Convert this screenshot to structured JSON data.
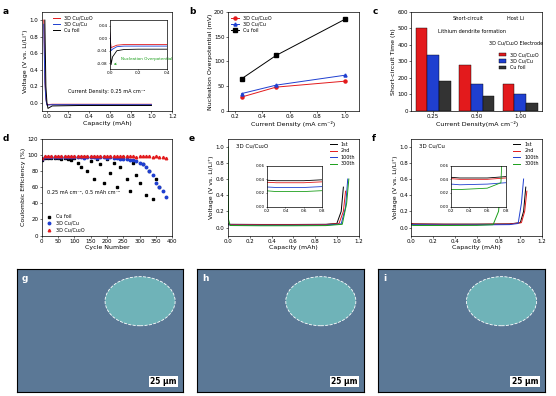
{
  "chart_data": [
    {
      "panel": "a",
      "type": "line",
      "x_label": "Capacity (mAh)",
      "y_label": "Voltage (V vs. Li/Li⁺)",
      "xlim": [
        -0.05,
        1.2
      ],
      "xticks": [
        0.0,
        0.2,
        0.4,
        0.6,
        0.8,
        1.0,
        1.2
      ],
      "ylim": [
        -0.1,
        1.1
      ],
      "yticks": [
        0.0,
        0.2,
        0.4,
        0.6,
        0.8,
        1.0
      ],
      "legend": "upper left",
      "annotations": [
        "Current Density: 0.25 mA cm⁻²"
      ],
      "series": [
        {
          "name": "3D Cu/Cu₂O",
          "color": "#e31a1c",
          "x": [
            -0.03,
            -0.025,
            -0.02,
            -0.01,
            0.0,
            0.05,
            0.3,
            0.6,
            1.0
          ],
          "values": [
            1.0,
            0.7,
            0.3,
            0.05,
            -0.025,
            -0.02,
            -0.02,
            -0.02,
            -0.02
          ]
        },
        {
          "name": "3D Cu/Cu",
          "color": "#1f3fd0",
          "x": [
            -0.03,
            -0.025,
            -0.02,
            -0.01,
            0.0,
            0.05,
            0.3,
            0.6,
            1.0
          ],
          "values": [
            0.95,
            0.6,
            0.25,
            0.04,
            -0.03,
            -0.025,
            -0.025,
            -0.025,
            -0.025
          ]
        },
        {
          "name": "Cu foil",
          "color": "#000000",
          "x": [
            -0.02,
            -0.015,
            -0.01,
            0.0,
            0.01,
            0.05,
            0.3,
            0.6,
            1.0
          ],
          "values": [
            1.0,
            0.6,
            0.2,
            0.0,
            -0.07,
            -0.04,
            -0.035,
            -0.035,
            -0.035
          ]
        }
      ],
      "inset": {
        "xlim": [
          0.0,
          0.4
        ],
        "xticks": [
          0.0,
          0.2,
          0.4
        ],
        "ylim": [
          -0.1,
          0.06
        ],
        "yticks": [
          -0.08,
          -0.04,
          {
            "value": 0.0,
            "label": "0.00"
          },
          0.04
        ],
        "annotations": [
          "Nucleation Overpotential"
        ],
        "series": [
          {
            "color": "#e31a1c",
            "x": [
              0.0,
              0.01,
              0.02,
              0.05,
              0.1,
              0.2,
              0.3,
              0.4
            ],
            "values": [
              0.02,
              -0.03,
              -0.028,
              -0.022,
              -0.02,
              -0.02,
              -0.02,
              -0.02
            ]
          },
          {
            "color": "#1f3fd0",
            "x": [
              0.0,
              0.01,
              0.02,
              0.05,
              0.1,
              0.2,
              0.3,
              0.4
            ],
            "values": [
              0.02,
              -0.04,
              -0.035,
              -0.027,
              -0.025,
              -0.025,
              -0.025,
              -0.025
            ]
          },
          {
            "color": "#000000",
            "x": [
              0.0,
              0.01,
              0.02,
              0.05,
              0.1,
              0.2,
              0.3,
              0.4
            ],
            "values": [
              0.04,
              -0.085,
              -0.06,
              -0.04,
              -0.036,
              -0.035,
              -0.035,
              -0.035
            ]
          }
        ]
      }
    },
    {
      "panel": "b",
      "type": "line",
      "x_label": "Current Density (mA cm⁻²)",
      "y_label": "Nucleation Overpotential (mV)",
      "xlim": [
        0.15,
        1.1
      ],
      "xticks": [
        0.2,
        0.4,
        0.6,
        0.8,
        1.0
      ],
      "ylim": [
        0,
        200
      ],
      "yticks": [
        0,
        50,
        100,
        150,
        200
      ],
      "legend": "upper left",
      "x": [
        0.25,
        0.5,
        1.0
      ],
      "series": [
        {
          "name": "3D Cu/Cu₂O",
          "color": "#e31a1c",
          "marker": "circle",
          "values": [
            28,
            48,
            60
          ]
        },
        {
          "name": "3D Cu/Cu",
          "color": "#1f3fd0",
          "marker": "triangle",
          "values": [
            35,
            52,
            72
          ]
        },
        {
          "name": "Cu foil",
          "color": "#000000",
          "marker": "square",
          "values": [
            65,
            112,
            185
          ]
        }
      ]
    },
    {
      "panel": "c",
      "type": "bar",
      "x_label": "Current Density(mA cm⁻²)",
      "y_label": "Short-circuit Time (h)",
      "categories": [
        "0.25",
        "0.50",
        "1.00"
      ],
      "ylim": [
        0,
        600
      ],
      "yticks": [
        0,
        100,
        200,
        300,
        400,
        500,
        600
      ],
      "legend": "center right",
      "annotations": [
        "Short-circuit",
        "Lithium dendrite formation",
        "Host Li",
        "3D Cu/Cu₂O Electrode"
      ],
      "series": [
        {
          "name": "3D Cu/Cu₂O",
          "color": "#e31a1c",
          "values": [
            505,
            280,
            165
          ]
        },
        {
          "name": "3D Cu/Cu",
          "color": "#1f3fd0",
          "values": [
            340,
            160,
            100
          ]
        },
        {
          "name": "Cu foil",
          "color": "#333333",
          "values": [
            180,
            90,
            50
          ]
        }
      ]
    },
    {
      "panel": "d",
      "type": "scatter",
      "x_label": "Cycle Number",
      "y_label": "Coulombic Efficiency (%)",
      "xlim": [
        0,
        400
      ],
      "xticks": [
        0,
        50,
        100,
        150,
        200,
        250,
        300,
        350,
        400
      ],
      "ylim": [
        0,
        120
      ],
      "yticks": [
        0,
        20,
        40,
        60,
        80,
        100,
        120
      ],
      "legend": "lower left",
      "annotations": [
        "0.25 mA cm⁻², 0.5 mAh cm⁻²"
      ],
      "series": [
        {
          "name": "Cu foil",
          "color": "#000000",
          "marker": "square",
          "x": [
            0,
            10,
            20,
            30,
            40,
            50,
            60,
            70,
            80,
            90,
            100,
            110,
            120,
            130,
            140,
            150,
            160,
            170,
            180,
            190,
            200,
            210,
            220,
            230,
            240,
            250,
            260,
            270,
            280,
            290,
            300,
            310,
            320,
            330,
            340,
            350,
            360
          ],
          "values": [
            94,
            96,
            96,
            96,
            96,
            96,
            95,
            96,
            95,
            94,
            96,
            90,
            85,
            97,
            80,
            92,
            70,
            95,
            88,
            65,
            95,
            78,
            90,
            60,
            85,
            97,
            70,
            55,
            90,
            75,
            65,
            88,
            50,
            80,
            45,
            70,
            60
          ]
        },
        {
          "name": "3D Cu/Cu",
          "color": "#1f3fd0",
          "marker": "circle",
          "x": [
            0,
            10,
            20,
            30,
            40,
            50,
            60,
            70,
            80,
            90,
            100,
            110,
            120,
            130,
            140,
            150,
            160,
            170,
            180,
            190,
            200,
            210,
            220,
            230,
            240,
            250,
            260,
            270,
            280,
            290,
            300,
            310,
            320,
            330,
            340,
            350,
            360,
            370,
            380
          ],
          "values": [
            95,
            97,
            97,
            97,
            97,
            97,
            97,
            97,
            97,
            97,
            97,
            97,
            97,
            96,
            97,
            97,
            97,
            96,
            97,
            97,
            96,
            97,
            96,
            96,
            95,
            95,
            95,
            94,
            93,
            92,
            90,
            88,
            85,
            80,
            75,
            65,
            60,
            55,
            48
          ]
        },
        {
          "name": "3D Cu/Cu₂O",
          "color": "#e31a1c",
          "marker": "triangle",
          "x": [
            0,
            10,
            20,
            30,
            40,
            50,
            60,
            70,
            80,
            90,
            100,
            110,
            120,
            130,
            140,
            150,
            160,
            170,
            180,
            190,
            200,
            210,
            220,
            230,
            240,
            250,
            260,
            270,
            280,
            290,
            300,
            310,
            320,
            330,
            340,
            350,
            360,
            370,
            380
          ],
          "values": [
            96,
            98,
            98,
            98,
            99,
            98,
            98,
            98,
            98,
            98,
            99,
            98,
            98,
            98,
            98,
            98,
            98,
            98,
            98,
            98,
            98,
            99,
            98,
            98,
            98,
            98,
            98,
            98,
            98,
            97,
            98,
            98,
            98,
            98,
            97,
            98,
            97,
            97,
            96
          ]
        }
      ]
    },
    {
      "panel": "e",
      "type": "line",
      "label": "3D Cu/Cu₂O",
      "x_label": "Capacity (mAh)",
      "y_label": "Voltage (V vs. Li/Li⁺)",
      "xlim": [
        0.0,
        1.2
      ],
      "xticks": [
        0.0,
        0.2,
        0.4,
        0.6,
        0.8,
        1.0,
        1.2
      ],
      "ylim": [
        -0.1,
        1.1
      ],
      "yticks": [
        0.0,
        0.2,
        0.4,
        0.6,
        0.8,
        1.0
      ],
      "legend": "upper right",
      "series": [
        {
          "name": "1st",
          "color": "#000000",
          "x": [
            0.0,
            0.02,
            0.3,
            0.6,
            0.9,
            1.0,
            1.04,
            1.06
          ],
          "values": [
            0.045,
            0.04,
            0.038,
            0.038,
            0.04,
            0.05,
            0.2,
            0.5
          ]
        },
        {
          "name": "2nd",
          "color": "#e31a1c",
          "x": [
            0.0,
            0.02,
            0.3,
            0.6,
            0.9,
            1.02,
            1.06,
            1.08
          ],
          "values": [
            0.042,
            0.037,
            0.035,
            0.035,
            0.037,
            0.05,
            0.2,
            0.45
          ]
        },
        {
          "name": "100th",
          "color": "#1f3fd0",
          "x": [
            0.0,
            0.02,
            0.3,
            0.6,
            0.9,
            1.04,
            1.08,
            1.1
          ],
          "values": [
            0.035,
            0.03,
            0.028,
            0.028,
            0.03,
            0.045,
            0.25,
            0.6
          ]
        },
        {
          "name": "300th",
          "color": "#1a9e1a",
          "x": [
            0.0,
            0.005,
            0.02,
            0.3,
            0.6,
            0.9,
            1.05,
            1.09,
            1.11
          ],
          "values": [
            1.0,
            0.1,
            0.025,
            0.022,
            0.022,
            0.024,
            0.04,
            0.3,
            0.6
          ]
        }
      ],
      "inset": {
        "xlim": [
          0.2,
          0.8
        ],
        "xticks": [
          0.2,
          0.4,
          0.6,
          0.8
        ],
        "ylim": [
          0.0,
          0.06
        ],
        "yticks": [
          {
            "value": 0.0,
            "label": "0.00"
          },
          0.02,
          0.04,
          0.06
        ]
      }
    },
    {
      "panel": "f",
      "type": "line",
      "label": "3D Cu/Cu",
      "x_label": "Capacity (mAh)",
      "y_label": "Voltage (V vs. Li/Li⁺)",
      "xlim": [
        0.0,
        1.2
      ],
      "xticks": [
        0.0,
        0.2,
        0.4,
        0.6,
        0.8,
        1.0,
        1.2
      ],
      "ylim": [
        -0.1,
        1.1
      ],
      "yticks": [
        0.0,
        0.2,
        0.4,
        0.6,
        0.8,
        1.0
      ],
      "legend": "upper right",
      "series": [
        {
          "name": "1st",
          "color": "#000000",
          "x": [
            0.0,
            0.02,
            0.3,
            0.6,
            0.9,
            1.0,
            1.03,
            1.05
          ],
          "values": [
            0.05,
            0.045,
            0.042,
            0.042,
            0.045,
            0.06,
            0.2,
            0.5
          ]
        },
        {
          "name": "2nd",
          "color": "#e31a1c",
          "x": [
            0.0,
            0.02,
            0.3,
            0.6,
            0.9,
            1.01,
            1.04,
            1.06
          ],
          "values": [
            0.048,
            0.043,
            0.04,
            0.04,
            0.043,
            0.06,
            0.2,
            0.45
          ]
        },
        {
          "name": "100th",
          "color": "#1f3fd0",
          "x": [
            0.0,
            0.02,
            0.3,
            0.6,
            0.9,
            0.98,
            1.01,
            1.03
          ],
          "values": [
            0.04,
            0.035,
            0.032,
            0.033,
            0.036,
            0.05,
            0.3,
            0.6
          ]
        },
        {
          "name": "300th",
          "color": "#1a9e1a",
          "x": [
            0.0,
            0.02,
            0.3,
            0.6,
            0.75,
            0.8,
            0.82
          ],
          "values": [
            0.03,
            0.025,
            0.025,
            0.027,
            0.035,
            0.2,
            0.5
          ]
        }
      ],
      "inset": {
        "xlim": [
          0.2,
          0.8
        ],
        "xticks": [
          0.2,
          0.4,
          0.6,
          0.8
        ],
        "ylim": [
          0.0,
          0.06
        ],
        "yticks": [
          {
            "value": 0.0,
            "label": "0.00"
          },
          0.02,
          0.04,
          0.06
        ]
      }
    }
  ],
  "images": [
    {
      "panel": "g",
      "scale_bar": "25 µm"
    },
    {
      "panel": "h",
      "scale_bar": "25 µm"
    },
    {
      "panel": "i",
      "scale_bar": "25 µm"
    }
  ]
}
